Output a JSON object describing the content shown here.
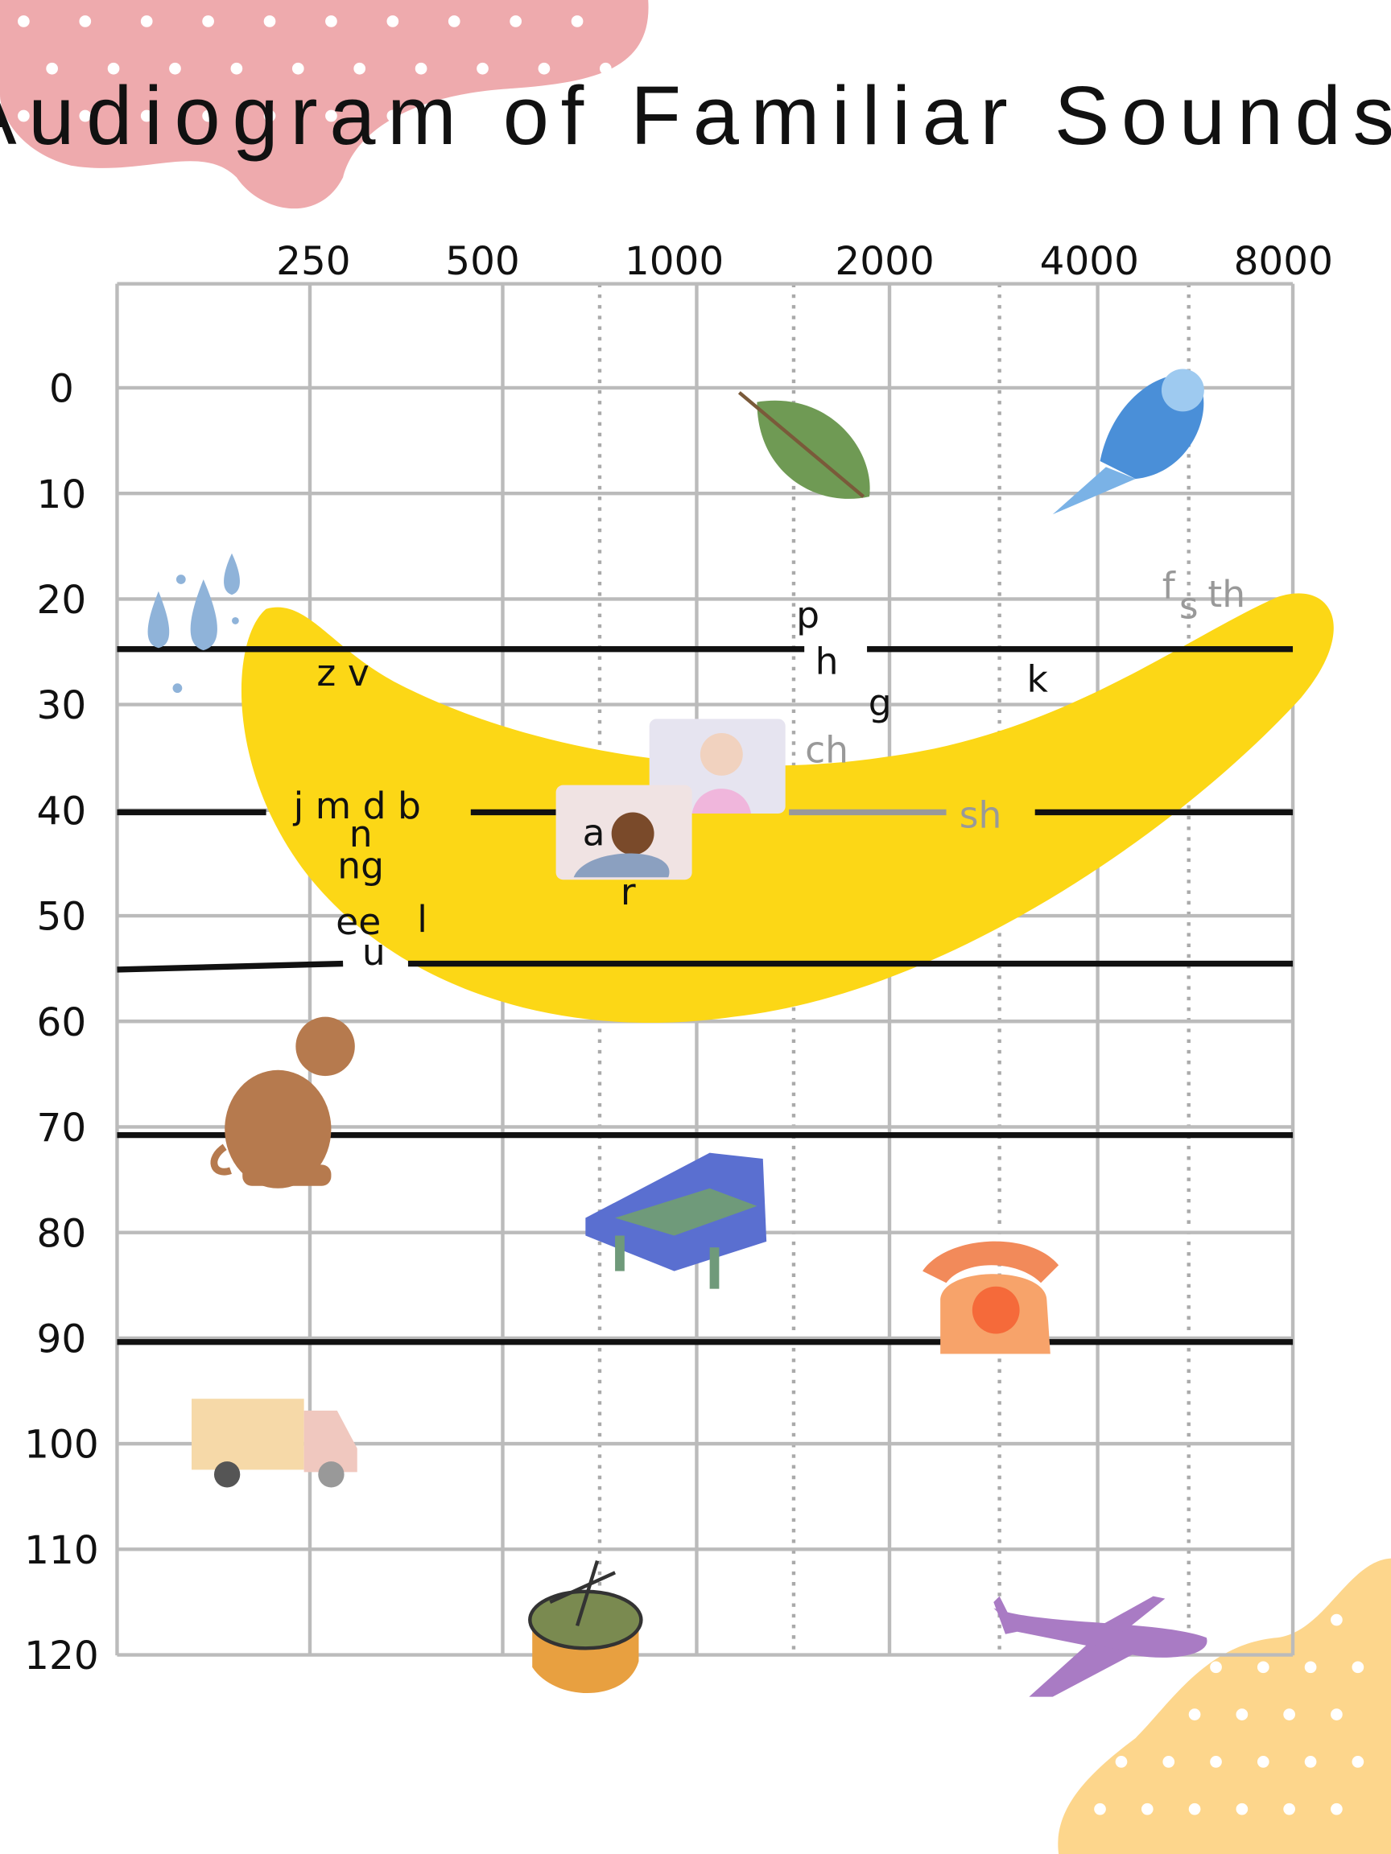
{
  "title": "Audiogram of Familiar Sounds",
  "frequency_labels": [
    250,
    500,
    1000,
    2000,
    4000,
    8000
  ],
  "level_labels": [
    0,
    10,
    20,
    30,
    40,
    50,
    60,
    70,
    80,
    90,
    100,
    110,
    120
  ],
  "speech_sounds": [
    "z v",
    "j m d b",
    "n",
    "ng",
    "ee",
    "l",
    "u",
    "a",
    "r",
    "p",
    "h",
    "g",
    "ch",
    "k",
    "sh",
    "f",
    "s",
    "th"
  ]
}
